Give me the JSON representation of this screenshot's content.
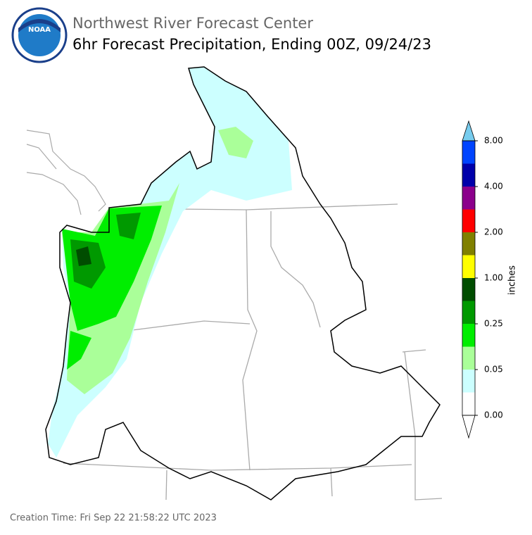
{
  "header": {
    "logo": "NOAA",
    "title": "Northwest River Forecast Center",
    "subtitle": "6hr Forecast Precipitation, Ending 00Z, 09/24/23"
  },
  "colorbar": {
    "label": "inches",
    "colors": [
      "#ffffff",
      "#ccffff",
      "#aaff99",
      "#00ee00",
      "#009900",
      "#004d00",
      "#ffff00",
      "#808000",
      "#ff0000",
      "#8b008b",
      "#0000aa",
      "#0044ff"
    ],
    "over_color": "#77ccee",
    "under_color": "#ffffff",
    "ticks": [
      {
        "value": 0,
        "label": "0.00"
      },
      {
        "value": 0.05,
        "label": "0.05"
      },
      {
        "value": 0.25,
        "label": "0.25"
      },
      {
        "value": 1,
        "label": "1.00"
      },
      {
        "value": 2,
        "label": "2.00"
      },
      {
        "value": 4,
        "label": "4.00"
      },
      {
        "value": 8,
        "label": "8.00"
      }
    ]
  },
  "footer": "Creation Time: Fri Sep 22 21:58:22 UTC 2023"
}
